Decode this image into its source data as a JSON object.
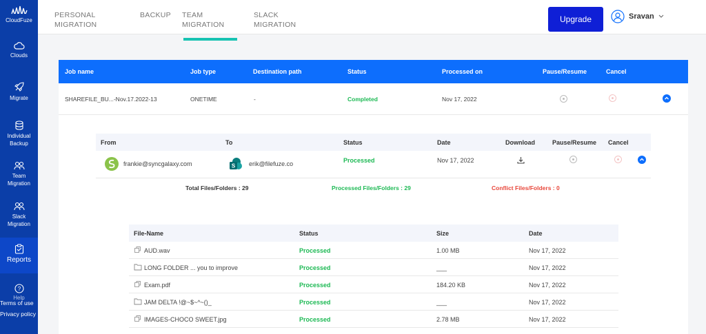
{
  "brand": {
    "name": "CloudFuze"
  },
  "sidebar": {
    "items": [
      {
        "label": "Clouds"
      },
      {
        "label": "Migrate"
      },
      {
        "label": "Individual Backup"
      },
      {
        "label": "Team Migration"
      },
      {
        "label": "Slack Migration"
      },
      {
        "label": "Reports"
      }
    ],
    "footer": {
      "help": "Help",
      "terms": "Terms of use",
      "privacy": "Privacy policy"
    }
  },
  "header": {
    "tabs": [
      {
        "label": "PERSONAL\nMIGRATION"
      },
      {
        "label": "BACKUP"
      },
      {
        "label": "TEAM\nMIGRATION"
      },
      {
        "label": "SLACK\nMIGRATION"
      }
    ],
    "upgrade_label": "Upgrade",
    "user_name": "Sravan"
  },
  "job_table": {
    "columns": [
      "Job name",
      "Job type",
      "Destination path",
      "Status",
      "Processed on",
      "Pause/Resume",
      "Cancel"
    ],
    "row": {
      "name": "SHAREFILE_BU...-Nov.17.2022-13",
      "type": "ONETIME",
      "destination": "-",
      "status": "Completed",
      "processed_on": "Nov 17, 2022"
    }
  },
  "detail": {
    "columns": [
      "From",
      "To",
      "Status",
      "Date",
      "Download",
      "Pause/Resume",
      "Cancel"
    ],
    "row": {
      "from": "frankie@syncgalaxy.com",
      "to": "erik@filefuze.co",
      "status": "Processed",
      "date": "Nov 17, 2022"
    },
    "totals": {
      "total": "Total Files/Folders : 29",
      "processed": "Processed Files/Folders : 29",
      "conflict": "Conflict Files/Folders : 0"
    }
  },
  "files": {
    "columns": [
      "File-Name",
      "Status",
      "Size",
      "Date"
    ],
    "rows": [
      {
        "name": "AUD.wav",
        "kind": "file",
        "status": "Processed",
        "size": "1.00 MB",
        "date": "Nov 17, 2022"
      },
      {
        "name": "LONG FOLDER ... you to improve",
        "kind": "folder",
        "status": "Processed",
        "size": "___",
        "date": "Nov 17, 2022"
      },
      {
        "name": "Exam.pdf",
        "kind": "file",
        "status": "Processed",
        "size": "184.20 KB",
        "date": "Nov 17, 2022"
      },
      {
        "name": "JAM DELTA !@~$~^~()_",
        "kind": "folder",
        "status": "Processed",
        "size": "___",
        "date": "Nov 17, 2022"
      },
      {
        "name": "IMAGES-CHOCO SWEET.jpg",
        "kind": "file",
        "status": "Processed",
        "size": "2.78 MB",
        "date": "Nov 17, 2022"
      }
    ]
  },
  "colors": {
    "sidebar": "#0b3ea8",
    "primary": "#0d6efd",
    "success": "#1db954",
    "danger": "#e8473b",
    "tab_underline": "#17c3b2"
  }
}
